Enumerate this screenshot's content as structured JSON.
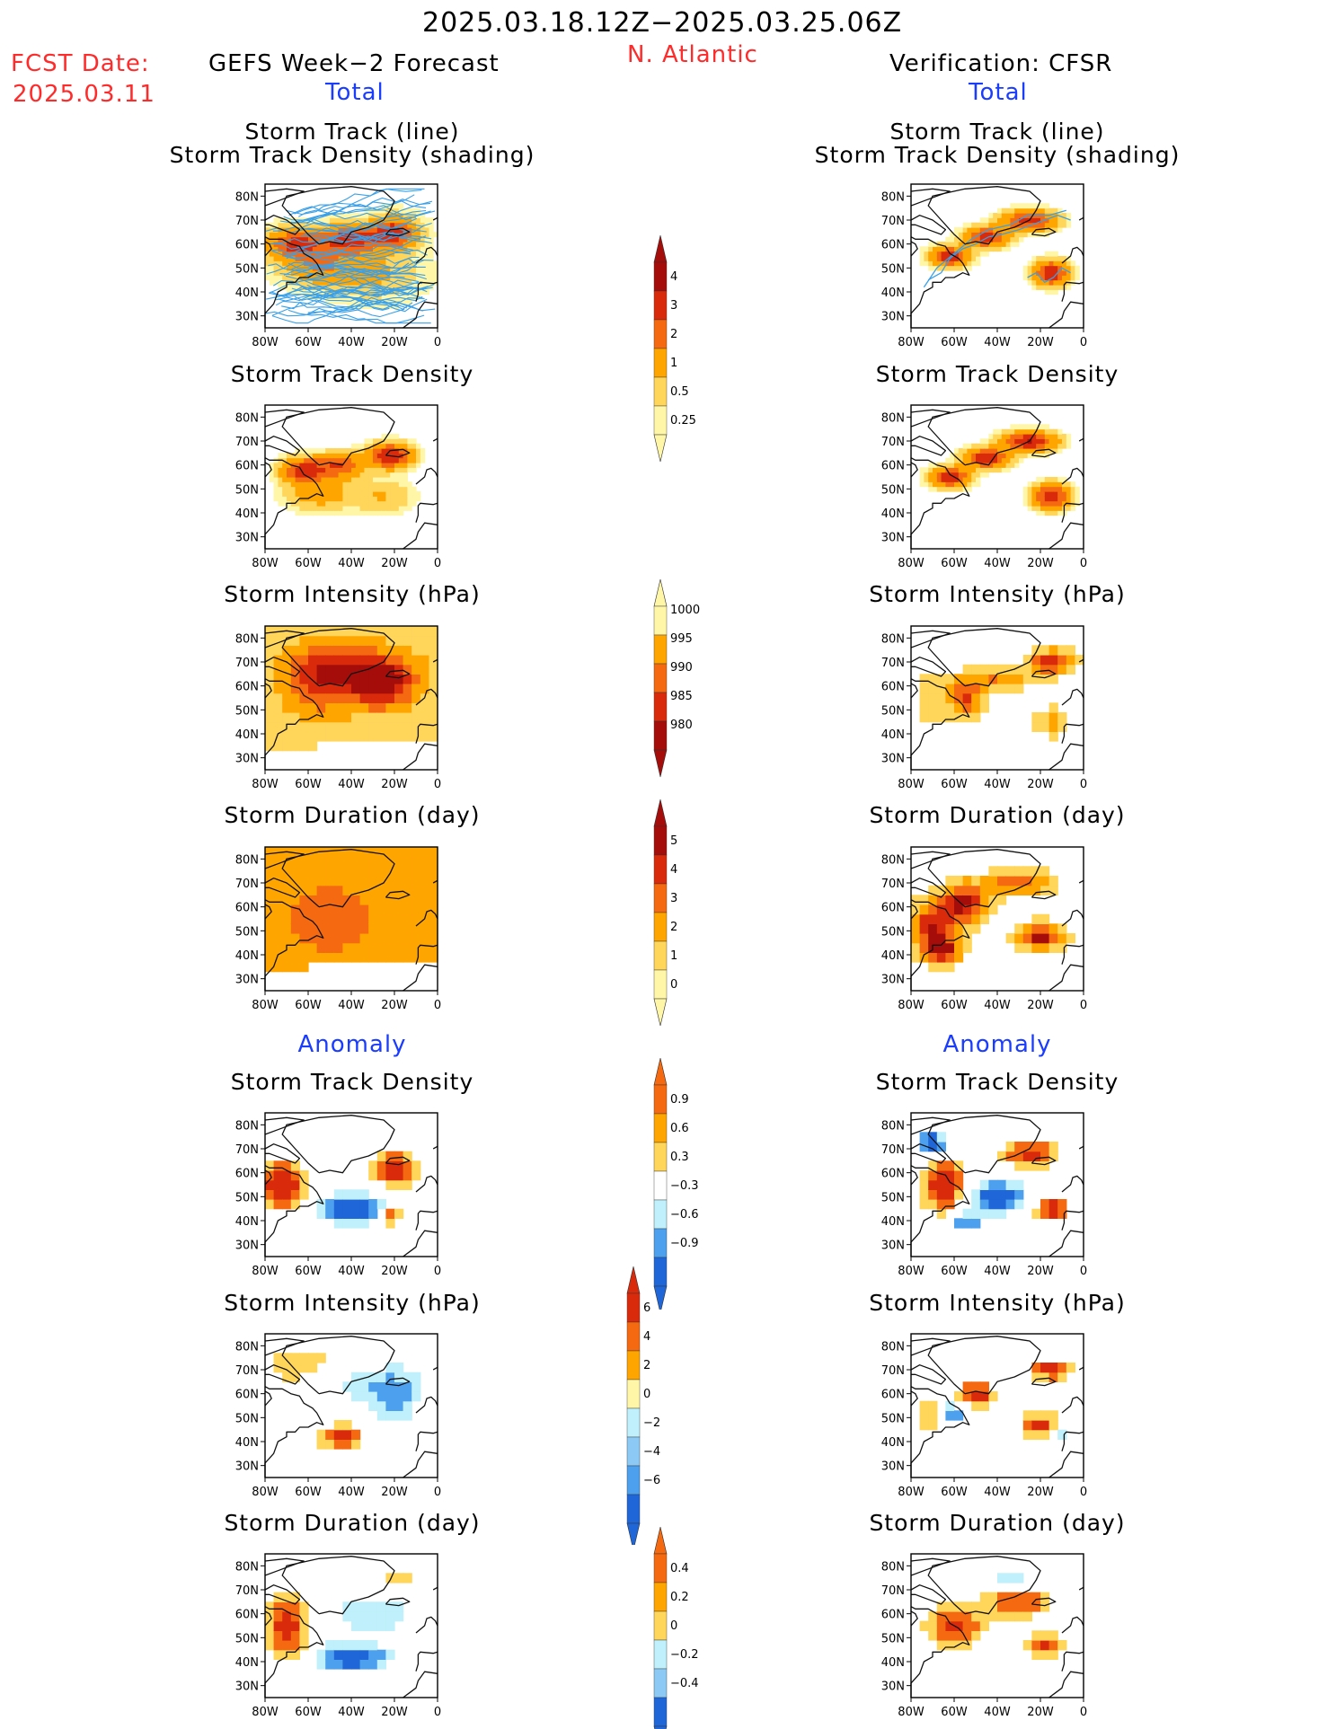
{
  "header": {
    "period": "2025.03.18.12Z−2025.03.25.06Z",
    "region": "N. Atlantic",
    "fcst_label": "FCST Date:",
    "fcst_date": "2025.03.11",
    "left_title": "GEFS Week−2 Forecast",
    "right_title": "Verification: CFSR",
    "left_sub": "Total",
    "right_sub": "Total"
  },
  "sections": {
    "anomaly_left": "Anomaly",
    "anomaly_right": "Anomaly"
  },
  "panel_titles": {
    "track_line": "Storm Track (line)",
    "track_shading": "Storm Track Density (shading)",
    "density": "Storm Track Density",
    "intensity": "Storm Intensity (hPa)",
    "duration": "Storm Duration (day)"
  },
  "colors": {
    "red_text": "#ff2a2a",
    "blue_text": "#1a3cff",
    "track_line": "#3aa0e8",
    "warm": [
      "#fff6a8",
      "#ffd55a",
      "#ffa500",
      "#f56a10",
      "#d92b0c",
      "#a50d0a"
    ],
    "cool": [
      "#bff0fb",
      "#8ccaf5",
      "#4da0ee",
      "#1f67d8"
    ]
  },
  "chart_data": [
    {
      "type": "heatmap",
      "panel": "forecast-total-track-density-with-tracks",
      "title": "Storm Track (line) / Storm Track Density (shading)",
      "xlabel": "",
      "ylabel": "",
      "xticks": [
        "80W",
        "60W",
        "40W",
        "20W",
        "0"
      ],
      "yticks": [
        "80N",
        "70N",
        "60N",
        "50N",
        "40N",
        "30N"
      ],
      "xlim": [
        -80,
        0
      ],
      "ylim": [
        25,
        85
      ],
      "colorbar": [
        0.25,
        0.5,
        1,
        2,
        3,
        4
      ]
    },
    {
      "type": "heatmap",
      "panel": "forecast-total-track-density",
      "title": "Storm Track Density",
      "xticks": [
        "80W",
        "60W",
        "40W",
        "20W",
        "0"
      ],
      "yticks": [
        "80N",
        "70N",
        "60N",
        "50N",
        "40N",
        "30N"
      ],
      "colorbar": [
        0.25,
        0.5,
        1,
        2,
        3,
        4
      ]
    },
    {
      "type": "heatmap",
      "panel": "forecast-total-intensity",
      "title": "Storm Intensity (hPa)",
      "xticks": [
        "80W",
        "60W",
        "40W",
        "20W",
        "0"
      ],
      "yticks": [
        "80N",
        "70N",
        "60N",
        "50N",
        "40N",
        "30N"
      ],
      "colorbar": [
        1000,
        995,
        990,
        985,
        980
      ]
    },
    {
      "type": "heatmap",
      "panel": "forecast-total-duration",
      "title": "Storm Duration (day)",
      "xticks": [
        "80W",
        "60W",
        "40W",
        "20W",
        "0"
      ],
      "yticks": [
        "80N",
        "70N",
        "60N",
        "50N",
        "40N",
        "30N"
      ],
      "colorbar": [
        0,
        1,
        2,
        3,
        4,
        5
      ]
    },
    {
      "type": "heatmap",
      "panel": "forecast-anom-track-density",
      "title": "Storm Track Density",
      "xticks": [
        "80W",
        "60W",
        "40W",
        "20W",
        "0"
      ],
      "yticks": [
        "80N",
        "70N",
        "60N",
        "50N",
        "40N",
        "30N"
      ],
      "colorbar": [
        0.9,
        0.6,
        0.3,
        -0.3,
        -0.6,
        -0.9
      ]
    },
    {
      "type": "heatmap",
      "panel": "forecast-anom-intensity",
      "title": "Storm Intensity (hPa)",
      "xticks": [
        "80W",
        "60W",
        "40W",
        "20W",
        "0"
      ],
      "yticks": [
        "80N",
        "70N",
        "60N",
        "50N",
        "40N",
        "30N"
      ],
      "colorbar": [
        6,
        4,
        2,
        0,
        -2,
        -4,
        -6
      ]
    },
    {
      "type": "heatmap",
      "panel": "forecast-anom-duration",
      "title": "Storm Duration (day)",
      "xticks": [
        "80W",
        "60W",
        "40W",
        "20W",
        "0"
      ],
      "yticks": [
        "80N",
        "70N",
        "60N",
        "50N",
        "40N",
        "30N"
      ],
      "colorbar": [
        0.4,
        0.2,
        0,
        -0.2,
        -0.4
      ]
    },
    {
      "type": "heatmap",
      "panel": "cfsr-total-track-density-with-tracks",
      "title": "Storm Track (line) / Storm Track Density (shading)",
      "xticks": [
        "80W",
        "60W",
        "40W",
        "20W",
        "0"
      ],
      "yticks": [
        "80N",
        "70N",
        "60N",
        "50N",
        "40N",
        "30N"
      ]
    },
    {
      "type": "heatmap",
      "panel": "cfsr-total-track-density",
      "title": "Storm Track Density",
      "xticks": [
        "80W",
        "60W",
        "40W",
        "20W",
        "0"
      ],
      "yticks": [
        "80N",
        "70N",
        "60N",
        "50N",
        "40N",
        "30N"
      ]
    },
    {
      "type": "heatmap",
      "panel": "cfsr-total-intensity",
      "title": "Storm Intensity (hPa)",
      "xticks": [
        "80W",
        "60W",
        "40W",
        "20W",
        "0"
      ],
      "yticks": [
        "80N",
        "70N",
        "60N",
        "50N",
        "40N",
        "30N"
      ]
    },
    {
      "type": "heatmap",
      "panel": "cfsr-total-duration",
      "title": "Storm Duration (day)",
      "xticks": [
        "80W",
        "60W",
        "40W",
        "20W",
        "0"
      ],
      "yticks": [
        "80N",
        "70N",
        "60N",
        "50N",
        "40N",
        "30N"
      ]
    },
    {
      "type": "heatmap",
      "panel": "cfsr-anom-track-density",
      "title": "Storm Track Density",
      "xticks": [
        "80W",
        "60W",
        "40W",
        "20W",
        "0"
      ],
      "yticks": [
        "80N",
        "70N",
        "60N",
        "50N",
        "40N",
        "30N"
      ]
    },
    {
      "type": "heatmap",
      "panel": "cfsr-anom-intensity",
      "title": "Storm Intensity (hPa)",
      "xticks": [
        "80W",
        "60W",
        "40W",
        "20W",
        "0"
      ],
      "yticks": [
        "80N",
        "70N",
        "60N",
        "50N",
        "40N",
        "30N"
      ]
    },
    {
      "type": "heatmap",
      "panel": "cfsr-anom-duration",
      "title": "Storm Duration (day)",
      "xticks": [
        "80W",
        "60W",
        "40W",
        "20W",
        "0"
      ],
      "yticks": [
        "80N",
        "70N",
        "60N",
        "50N",
        "40N",
        "30N"
      ]
    }
  ],
  "axes": {
    "xticks": [
      "80W",
      "60W",
      "40W",
      "20W",
      "0"
    ],
    "yticks": [
      "80N",
      "70N",
      "60N",
      "50N",
      "40N",
      "30N"
    ]
  },
  "colorbars": [
    {
      "id": "cb-density",
      "labels": [
        "4",
        "3",
        "2",
        "1",
        "0.5",
        "0.25"
      ],
      "palette": "warm_up"
    },
    {
      "id": "cb-intensity",
      "labels": [
        "1000",
        "995",
        "990",
        "985",
        "980"
      ],
      "palette": "warm_down"
    },
    {
      "id": "cb-duration",
      "labels": [
        "5",
        "4",
        "3",
        "2",
        "1",
        "0"
      ],
      "palette": "warm_up"
    },
    {
      "id": "cb-anom-density",
      "labels": [
        "0.9",
        "0.6",
        "0.3",
        "−0.3",
        "−0.6",
        "−0.9"
      ],
      "palette": "div"
    },
    {
      "id": "cb-anom-intensity",
      "labels": [
        "6",
        "4",
        "2",
        "0",
        "−2",
        "−4",
        "−6"
      ],
      "palette": "div"
    },
    {
      "id": "cb-anom-duration",
      "labels": [
        "0.4",
        "0.2",
        "0",
        "−0.2",
        "−0.4"
      ],
      "palette": "div"
    }
  ]
}
